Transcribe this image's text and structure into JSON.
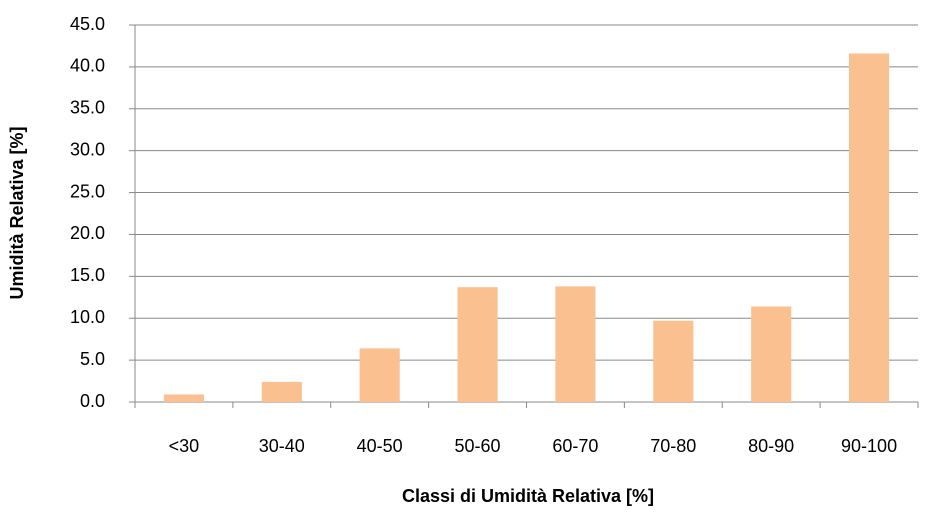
{
  "chart_data": {
    "type": "bar",
    "x_label": "Classi di Umidità Relativa [%]",
    "y_label": "Umidità Relativa [%]",
    "categories": [
      "<30",
      "30-40",
      "40-50",
      "50-60",
      "60-70",
      "70-80",
      "80-90",
      "90-100"
    ],
    "values": [
      0.9,
      2.4,
      6.4,
      13.7,
      13.8,
      9.7,
      11.4,
      41.6
    ],
    "color": "#fac090",
    "ylim": [
      0,
      45
    ],
    "yticks": [
      {
        "value": 0,
        "label": "0.0"
      },
      {
        "value": 5,
        "label": "5.0"
      },
      {
        "value": 10,
        "label": "10.0"
      },
      {
        "value": 15,
        "label": "15.0"
      },
      {
        "value": 20,
        "label": "20.0"
      },
      {
        "value": 25,
        "label": "25.0"
      },
      {
        "value": 30,
        "label": "30.0"
      },
      {
        "value": 35,
        "label": "35.0"
      },
      {
        "value": 40,
        "label": "40.0"
      },
      {
        "value": 45,
        "label": "45.0"
      }
    ],
    "grid": true
  }
}
